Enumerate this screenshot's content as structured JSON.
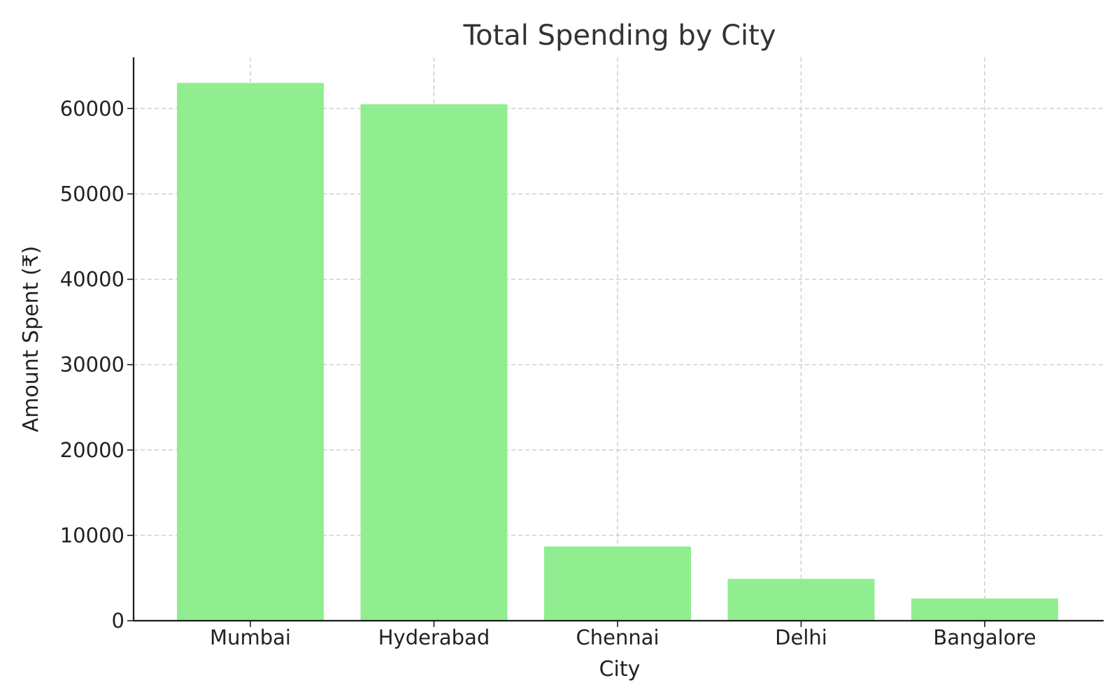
{
  "chart_data": {
    "type": "bar",
    "title": "Total Spending by City",
    "xlabel": "City",
    "ylabel": "Amount Spent (₹)",
    "categories": [
      "Mumbai",
      "Hyderabad",
      "Chennai",
      "Delhi",
      "Bangalore"
    ],
    "values": [
      63000,
      60500,
      8700,
      4900,
      2600
    ],
    "ylim": [
      0,
      66000
    ],
    "yticks": [
      0,
      10000,
      20000,
      30000,
      40000,
      50000,
      60000
    ],
    "ytick_labels": [
      "0",
      "10000",
      "20000",
      "30000",
      "40000",
      "50000",
      "60000"
    ],
    "bar_color": "#90ee90",
    "grid": true,
    "legend": "none"
  }
}
